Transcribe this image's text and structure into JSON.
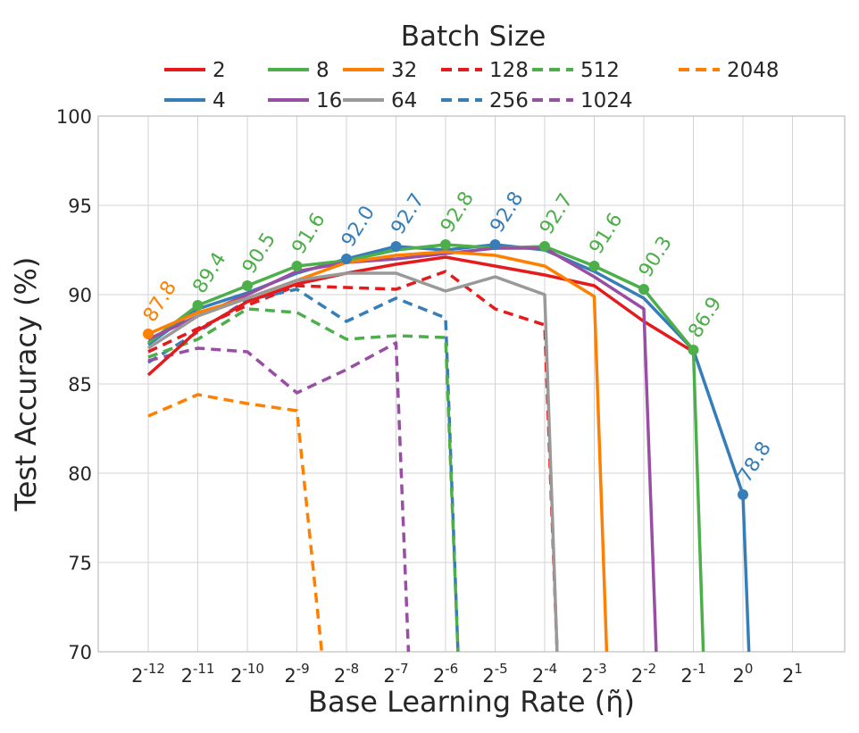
{
  "chart_data": {
    "type": "line",
    "title": "Batch Size",
    "xlabel": "Base Learning Rate (η̃)",
    "ylabel": "Test Accuracy (%)",
    "ylim": [
      70,
      100
    ],
    "x_exponents": [
      -12,
      -11,
      -10,
      -9,
      -8,
      -7,
      -6,
      -5,
      -4,
      -3,
      -2,
      -1,
      0,
      1
    ],
    "x_tick_base": "2",
    "y_ticks": [
      70,
      75,
      80,
      85,
      90,
      95,
      100
    ],
    "grid": true,
    "legend": "top-center",
    "series": [
      {
        "name": "2",
        "color": "#e41a1c",
        "dash": false,
        "exps": [
          -12,
          -11,
          -10,
          -9,
          -8,
          -7,
          -6,
          -5,
          -4,
          -3,
          -2,
          -1
        ],
        "values": [
          85.5,
          88.0,
          89.6,
          90.6,
          91.2,
          91.7,
          92.1,
          91.6,
          91.1,
          90.5,
          88.5,
          86.8
        ]
      },
      {
        "name": "4",
        "color": "#377eb8",
        "dash": false,
        "exps": [
          -12,
          -11,
          -10,
          -9,
          -8,
          -7,
          -6,
          -5,
          -4,
          -3,
          -2,
          -1,
          0,
          0.12
        ],
        "values": [
          87.2,
          89.2,
          90.1,
          91.2,
          92.0,
          92.7,
          92.5,
          92.8,
          92.5,
          91.3,
          89.8,
          86.9,
          78.8,
          70
        ]
      },
      {
        "name": "8",
        "color": "#4daf4a",
        "dash": false,
        "exps": [
          -12,
          -11,
          -10,
          -9,
          -8,
          -7,
          -6,
          -5,
          -4,
          -3,
          -2,
          -1,
          -0.8
        ],
        "values": [
          87.3,
          89.4,
          90.5,
          91.6,
          91.9,
          92.5,
          92.8,
          92.6,
          92.7,
          91.6,
          90.3,
          86.9,
          70
        ]
      },
      {
        "name": "16",
        "color": "#984ea3",
        "dash": false,
        "exps": [
          -12,
          -11,
          -10,
          -9,
          -8,
          -7,
          -6,
          -5,
          -4,
          -3,
          -2,
          -1.75
        ],
        "values": [
          87.5,
          88.8,
          90.0,
          91.3,
          91.8,
          92.0,
          92.3,
          92.6,
          92.6,
          91.0,
          89.2,
          70
        ]
      },
      {
        "name": "32",
        "color": "#ff7f00",
        "dash": false,
        "exps": [
          -12,
          -11,
          -10,
          -9,
          -8,
          -7,
          -6,
          -5,
          -4,
          -3,
          -2.75
        ],
        "values": [
          87.8,
          89.0,
          89.8,
          90.8,
          91.8,
          92.2,
          92.4,
          92.2,
          91.6,
          89.9,
          70
        ]
      },
      {
        "name": "64",
        "color": "#999999",
        "dash": false,
        "exps": [
          -12,
          -11,
          -10,
          -9,
          -8,
          -7,
          -6,
          -5,
          -4,
          -3.75
        ],
        "values": [
          87.0,
          88.8,
          89.8,
          90.8,
          91.2,
          91.2,
          90.2,
          91.0,
          90.0,
          70
        ]
      },
      {
        "name": "128",
        "color": "#e41a1c",
        "dash": true,
        "exps": [
          -12,
          -11,
          -10,
          -9,
          -8,
          -7,
          -6,
          -5,
          -4,
          -3.75
        ],
        "values": [
          86.8,
          88.1,
          89.4,
          90.5,
          90.4,
          90.3,
          91.3,
          89.2,
          88.3,
          70
        ]
      },
      {
        "name": "256",
        "color": "#377eb8",
        "dash": true,
        "exps": [
          -12,
          -11,
          -10,
          -9,
          -8,
          -7,
          -6,
          -5.75
        ],
        "values": [
          86.2,
          87.9,
          89.7,
          90.3,
          88.5,
          89.8,
          88.7,
          70
        ]
      },
      {
        "name": "512",
        "color": "#4daf4a",
        "dash": true,
        "exps": [
          -12,
          -11,
          -10,
          -9,
          -8,
          -7,
          -6,
          -5.75
        ],
        "values": [
          86.5,
          87.5,
          89.2,
          89.0,
          87.5,
          87.7,
          87.6,
          70
        ]
      },
      {
        "name": "1024",
        "color": "#984ea3",
        "dash": true,
        "exps": [
          -12,
          -11,
          -10,
          -9,
          -8,
          -7,
          -6.75
        ],
        "values": [
          86.3,
          87.0,
          86.8,
          84.5,
          85.8,
          87.3,
          70
        ]
      },
      {
        "name": "2048",
        "color": "#ff7f00",
        "dash": true,
        "exps": [
          -12,
          -11,
          -10,
          -9,
          -8.5
        ],
        "values": [
          83.2,
          84.4,
          83.9,
          83.5,
          70
        ]
      }
    ],
    "best_points": [
      {
        "exp": -12,
        "value": 87.8,
        "label": "87.8",
        "color": "#ff7f00"
      },
      {
        "exp": -11,
        "value": 89.4,
        "label": "89.4",
        "color": "#4daf4a"
      },
      {
        "exp": -10,
        "value": 90.5,
        "label": "90.5",
        "color": "#4daf4a"
      },
      {
        "exp": -9,
        "value": 91.6,
        "label": "91.6",
        "color": "#4daf4a"
      },
      {
        "exp": -8,
        "value": 92.0,
        "label": "92.0",
        "color": "#377eb8"
      },
      {
        "exp": -7,
        "value": 92.7,
        "label": "92.7",
        "color": "#377eb8"
      },
      {
        "exp": -6,
        "value": 92.8,
        "label": "92.8",
        "color": "#4daf4a"
      },
      {
        "exp": -5,
        "value": 92.8,
        "label": "92.8",
        "color": "#377eb8"
      },
      {
        "exp": -4,
        "value": 92.7,
        "label": "92.7",
        "color": "#4daf4a"
      },
      {
        "exp": -3,
        "value": 91.6,
        "label": "91.6",
        "color": "#4daf4a"
      },
      {
        "exp": -2,
        "value": 90.3,
        "label": "90.3",
        "color": "#4daf4a"
      },
      {
        "exp": -1,
        "value": 86.9,
        "label": "86.9",
        "color": "#4daf4a"
      },
      {
        "exp": 0,
        "value": 78.8,
        "label": "78.8",
        "color": "#377eb8"
      }
    ],
    "legend_order": [
      "2",
      "8",
      "32",
      "128",
      "512",
      "2048",
      "4",
      "16",
      "64",
      "256",
      "1024"
    ]
  }
}
